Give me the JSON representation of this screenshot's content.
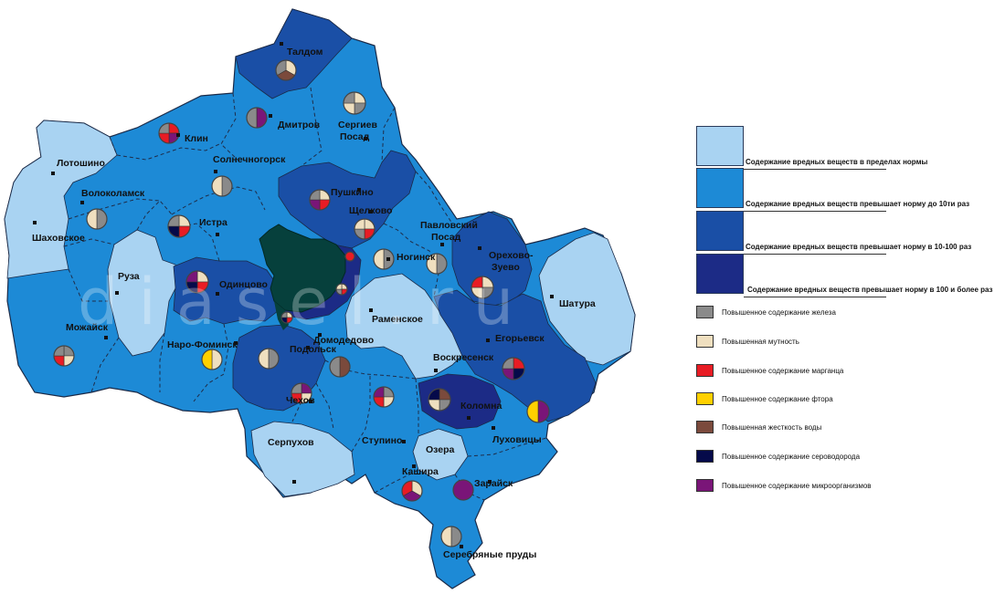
{
  "watermark": "diasel.ru",
  "colors": {
    "zone_norm": "#a9d3f2",
    "zone_10": "#1d8ad6",
    "zone_10_100": "#1a4fa6",
    "zone_100": "#1c2b86",
    "moscow": "#06403c",
    "iron": "#8a8a8a",
    "turbidity": "#efdfbf",
    "manganese": "#e81c24",
    "fluorine": "#ffd000",
    "hardness": "#7b4a3c",
    "h2s": "#050a4a",
    "microbes": "#7a1578"
  },
  "legend": {
    "zones": [
      {
        "key": "zone_norm",
        "label": "Содержание вредных веществ в пределах нормы"
      },
      {
        "key": "zone_10",
        "label": "Содержание вредных веществ превышает норму до 10ти раз"
      },
      {
        "key": "zone_10_100",
        "label": "Содержание вредных веществ превышает норму в 10-100 раз"
      },
      {
        "key": "zone_100",
        "label": "Содержание вредных веществ превышает норму в 100 и более раз"
      }
    ],
    "indicators": [
      {
        "key": "iron",
        "label": "Повышенное содержание железа"
      },
      {
        "key": "turbidity",
        "label": "Повышенная мутность"
      },
      {
        "key": "manganese",
        "label": "Повышенное содержание марганца"
      },
      {
        "key": "fluorine",
        "label": "Повышенное содержание фтора"
      },
      {
        "key": "hardness",
        "label": "Повышенная жесткость воды"
      },
      {
        "key": "h2s",
        "label": "Повышенное содержание сероводорода"
      },
      {
        "key": "microbes",
        "label": "Повышенное содержание микроорганизмов"
      }
    ]
  },
  "cities": [
    {
      "id": "taldom",
      "label": "Талдом"
    },
    {
      "id": "dmitrov",
      "label": "Дмитров"
    },
    {
      "id": "sergiev1",
      "label": "Сергиев"
    },
    {
      "id": "sergiev2",
      "label": "Посад"
    },
    {
      "id": "klin",
      "label": "Клин"
    },
    {
      "id": "solnech",
      "label": "Солнечногорск"
    },
    {
      "id": "lotoshino",
      "label": "Лотошино"
    },
    {
      "id": "volokolamsk",
      "label": "Волоколамск"
    },
    {
      "id": "pushkino",
      "label": "Пушкино"
    },
    {
      "id": "shchelkovo",
      "label": "Щелково"
    },
    {
      "id": "istra",
      "label": "Истра"
    },
    {
      "id": "shakhovskoe",
      "label": "Шаховское"
    },
    {
      "id": "pavlposad1",
      "label": "Павловский"
    },
    {
      "id": "pavlposad2",
      "label": "Посад"
    },
    {
      "id": "noginsk",
      "label": "Ногинск"
    },
    {
      "id": "orekhovo1",
      "label": "Орехово-"
    },
    {
      "id": "orekhovo2",
      "label": "Зуево"
    },
    {
      "id": "ruza",
      "label": "Руза"
    },
    {
      "id": "odintsovo",
      "label": "Одинцово"
    },
    {
      "id": "shatura",
      "label": "Шатура"
    },
    {
      "id": "mozhaysk",
      "label": "Можайск"
    },
    {
      "id": "ramenskoe",
      "label": "Раменское"
    },
    {
      "id": "naro",
      "label": "Наро-Фоминск"
    },
    {
      "id": "domodedovo",
      "label": "Домодедово"
    },
    {
      "id": "egorievsk",
      "label": "Егорьевск"
    },
    {
      "id": "podolsk",
      "label": "Подольск"
    },
    {
      "id": "voskresensk",
      "label": "Воскресенск"
    },
    {
      "id": "chekhov",
      "label": "Чехов"
    },
    {
      "id": "kolomna",
      "label": "Коломна"
    },
    {
      "id": "serpukhov",
      "label": "Серпухов"
    },
    {
      "id": "stupino",
      "label": "Ступино"
    },
    {
      "id": "lukhovitsy",
      "label": "Луховицы"
    },
    {
      "id": "ozery",
      "label": "Озера"
    },
    {
      "id": "kashira",
      "label": "Кашира"
    },
    {
      "id": "zaraysk",
      "label": "Зарайск"
    },
    {
      "id": "serprudy",
      "label": "Серебряные пруды"
    }
  ],
  "pies": [
    {
      "id": "taldom",
      "parts": [
        "turbidity",
        "hardness",
        "iron"
      ]
    },
    {
      "id": "dmitrov",
      "parts": [
        "microbes",
        "iron"
      ]
    },
    {
      "id": "sergiev",
      "parts": [
        "turbidity",
        "iron",
        "turbidity",
        "iron"
      ]
    },
    {
      "id": "klin",
      "parts": [
        "manganese",
        "microbes",
        "manganese",
        "iron"
      ]
    },
    {
      "id": "solnech",
      "parts": [
        "iron",
        "turbidity"
      ]
    },
    {
      "id": "volokolamsk",
      "parts": [
        "iron",
        "turbidity"
      ]
    },
    {
      "id": "pushkino",
      "parts": [
        "turbidity",
        "manganese",
        "microbes",
        "iron"
      ]
    },
    {
      "id": "istra",
      "parts": [
        "turbidity",
        "manganese",
        "h2s",
        "iron"
      ]
    },
    {
      "id": "shchelkovo",
      "parts": [
        "turbidity",
        "manganese",
        "iron",
        "turbidity"
      ]
    },
    {
      "id": "noginsk",
      "parts": [
        "iron",
        "turbidity"
      ]
    },
    {
      "id": "pavlposad",
      "parts": [
        "iron",
        "turbidity"
      ]
    },
    {
      "id": "odintsovo",
      "parts": [
        "turbidity",
        "manganese",
        "h2s",
        "microbes"
      ]
    },
    {
      "id": "orekhovo",
      "parts": [
        "turbidity",
        "iron",
        "turbidity",
        "manganese"
      ]
    },
    {
      "id": "mozhaysk",
      "parts": [
        "iron",
        "turbidity",
        "manganese",
        "iron"
      ]
    },
    {
      "id": "naro",
      "parts": [
        "turbidity",
        "fluorine"
      ]
    },
    {
      "id": "podolsk",
      "parts": [
        "iron",
        "turbidity"
      ]
    },
    {
      "id": "domodedovo",
      "parts": [
        "hardness",
        "iron"
      ]
    },
    {
      "id": "egorievsk",
      "parts": [
        "manganese",
        "h2s",
        "microbes",
        "iron"
      ]
    },
    {
      "id": "chekhov",
      "parts": [
        "microbes",
        "turbidity",
        "manganese",
        "iron"
      ]
    },
    {
      "id": "stupino",
      "parts": [
        "iron",
        "turbidity",
        "manganese",
        "microbes"
      ]
    },
    {
      "id": "kolomna",
      "parts": [
        "hardness",
        "iron",
        "turbidity",
        "h2s"
      ]
    },
    {
      "id": "lukhovitsy",
      "parts": [
        "microbes",
        "fluorine"
      ]
    },
    {
      "id": "kashira",
      "parts": [
        "turbidity",
        "microbes",
        "manganese"
      ]
    },
    {
      "id": "zaraysk",
      "parts": [
        "microbes"
      ]
    },
    {
      "id": "serprudy",
      "parts": [
        "iron",
        "turbidity"
      ]
    },
    {
      "id": "moscow-small1",
      "parts": [
        "manganese"
      ]
    },
    {
      "id": "moscow-small2",
      "parts": [
        "turbidity",
        "manganese",
        "iron",
        "turbidity"
      ]
    },
    {
      "id": "moscow-small3",
      "parts": [
        "turbidity",
        "manganese",
        "h2s",
        "iron"
      ]
    }
  ]
}
